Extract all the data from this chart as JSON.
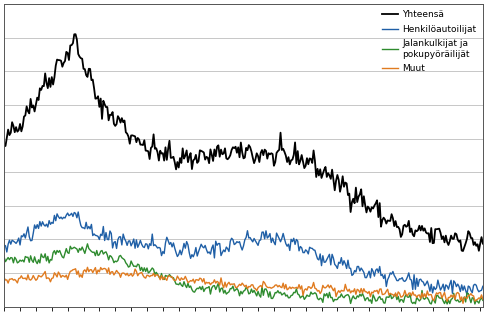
{
  "line_colors": {
    "yhteensa": "#000000",
    "henkiloautoilijat": "#1f5fa6",
    "jalankulkijat": "#2e8b2e",
    "muut": "#e07b20"
  },
  "legend_labels": {
    "yhteensa": "Yhteensä",
    "henkiloautoilijat": "Henkilöautoilijat",
    "jalankulkijat": "Jalankulkijat ja\npokupyöräilijät",
    "muut": "Muut"
  },
  "n_months": 363,
  "background_color": "#ffffff",
  "grid_color": "#b0b0b0",
  "line_width": 1.0,
  "n_gridlines": 8
}
